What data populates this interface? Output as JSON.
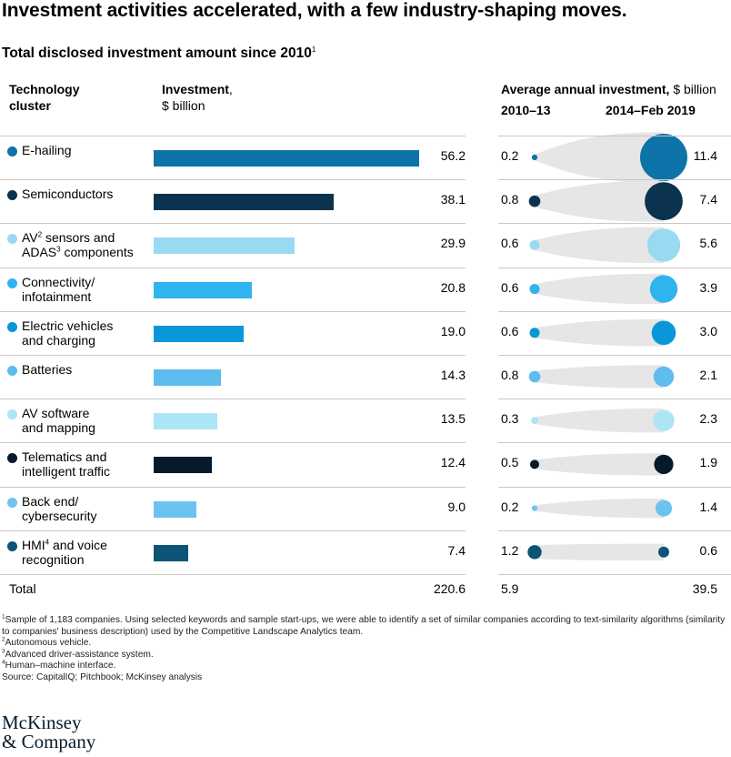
{
  "title": "Investment activities accelerated, with a few industry-shaping moves.",
  "subtitle": "Total disclosed investment amount since 2010",
  "subtitle_note": "1",
  "headers": {
    "cluster_line1": "Technology",
    "cluster_line2": "cluster",
    "investment_bold": "Investment",
    "investment_comma": ",",
    "investment_unit": "$ billion",
    "avg_bold": "Average annual investment,",
    "avg_unit": "$ billion",
    "period1": "2010–13",
    "period2": "2014–Feb 2019"
  },
  "chart_data": {
    "type": "bar",
    "categories": [
      "E-hailing",
      "Semiconductors",
      "AV sensors and ADAS components",
      "Connectivity/ infotainment",
      "Electric vehicles and charging",
      "Batteries",
      "AV software and mapping",
      "Telematics and intelligent traffic",
      "Back end/ cybersecurity",
      "HMI and voice recognition"
    ],
    "series": [
      {
        "name": "Investment, $ billion",
        "values": [
          56.2,
          38.1,
          29.9,
          20.8,
          19.0,
          14.3,
          13.5,
          12.4,
          9.0,
          7.4
        ]
      },
      {
        "name": "Average annual investment 2010–13, $ billion",
        "values": [
          0.2,
          0.8,
          0.6,
          0.6,
          0.6,
          0.8,
          0.3,
          0.5,
          0.2,
          1.2
        ]
      },
      {
        "name": "Average annual investment 2014–Feb 2019, $ billion",
        "values": [
          11.4,
          7.4,
          5.6,
          3.9,
          3.0,
          2.1,
          2.3,
          1.9,
          1.4,
          0.6
        ]
      }
    ],
    "rows": [
      {
        "line1": "E-hailing",
        "line2": "",
        "sup1": "",
        "sup2": "",
        "line1_post": "",
        "line2_post": "",
        "color": "#0e73a9",
        "investment": "56.2",
        "invest_num": 56.2,
        "avg1": "0.2",
        "avg1_num": 0.2,
        "avg2": "11.4",
        "avg2_num": 11.4
      },
      {
        "line1": "Semiconductors",
        "line2": "",
        "sup1": "",
        "sup2": "",
        "line1_post": "",
        "line2_post": "",
        "color": "#0b3350",
        "investment": "38.1",
        "invest_num": 38.1,
        "avg1": "0.8",
        "avg1_num": 0.8,
        "avg2": "7.4",
        "avg2_num": 7.4
      },
      {
        "line1": "AV",
        "sup1": "2",
        "line1_post": " sensors and",
        "line2": "ADAS",
        "sup2": "3",
        "line2_post": " components",
        "color": "#99d9f2",
        "investment": "29.9",
        "invest_num": 29.9,
        "avg1": "0.6",
        "avg1_num": 0.6,
        "avg2": "5.6",
        "avg2_num": 5.6
      },
      {
        "line1": "Connectivity/",
        "line2": "infotainment",
        "sup1": "",
        "sup2": "",
        "line1_post": "",
        "line2_post": "",
        "color": "#2fb4ee",
        "investment": "20.8",
        "invest_num": 20.8,
        "avg1": "0.6",
        "avg1_num": 0.6,
        "avg2": "3.9",
        "avg2_num": 3.9
      },
      {
        "line1": "Electric vehicles",
        "line2": "and charging",
        "sup1": "",
        "sup2": "",
        "line1_post": "",
        "line2_post": "",
        "color": "#0a97d8",
        "investment": "19.0",
        "invest_num": 19.0,
        "avg1": "0.6",
        "avg1_num": 0.6,
        "avg2": "3.0",
        "avg2_num": 3.0
      },
      {
        "line1": "Batteries",
        "line2": "",
        "sup1": "",
        "sup2": "",
        "line1_post": "",
        "line2_post": "",
        "color": "#5fbcee",
        "investment": "14.3",
        "invest_num": 14.3,
        "avg1": "0.8",
        "avg1_num": 0.8,
        "avg2": "2.1",
        "avg2_num": 2.1
      },
      {
        "line1": "AV software",
        "line2": "and mapping",
        "sup1": "",
        "sup2": "",
        "line1_post": "",
        "line2_post": "",
        "color": "#aee5f4",
        "investment": "13.5",
        "invest_num": 13.5,
        "avg1": "0.3",
        "avg1_num": 0.3,
        "avg2": "2.3",
        "avg2_num": 2.3
      },
      {
        "line1": "Telematics and",
        "line2": "intelligent traffic",
        "sup1": "",
        "sup2": "",
        "line1_post": "",
        "line2_post": "",
        "color": "#061a2b",
        "investment": "12.4",
        "invest_num": 12.4,
        "avg1": "0.5",
        "avg1_num": 0.5,
        "avg2": "1.9",
        "avg2_num": 1.9
      },
      {
        "line1": "Back end/",
        "line2": "cybersecurity",
        "sup1": "",
        "sup2": "",
        "line1_post": "",
        "line2_post": "",
        "color": "#6cc3f0",
        "investment": "9.0",
        "invest_num": 9.0,
        "avg1": "0.2",
        "avg1_num": 0.2,
        "avg2": "1.4",
        "avg2_num": 1.4
      },
      {
        "line1": "HMI",
        "sup1": "4",
        "line1_post": " and voice",
        "line2": "recognition",
        "sup2": "",
        "line2_post": "",
        "color": "#0b5478",
        "investment": "7.4",
        "invest_num": 7.4,
        "avg1": "1.2",
        "avg1_num": 1.2,
        "avg2": "0.6",
        "avg2_num": 0.6
      }
    ],
    "total_label": "Total",
    "total_investment": "220.6",
    "total_avg1": "5.9",
    "total_avg2": "39.5"
  },
  "footnotes": [
    {
      "sup": "1",
      "text": "Sample of 1,183 companies. Using selected keywords and sample start-ups, we were able to identify a set of similar companies according to text-similarity algorithms (similarity to companies' business description) used by the Competitive Landscape Analytics team."
    },
    {
      "sup": "2",
      "text": "Autonomous vehicle."
    },
    {
      "sup": "3",
      "text": "Advanced driver-assistance system."
    },
    {
      "sup": "4",
      "text": "Human–machine interface."
    },
    {
      "sup": "",
      "text": " Source: CapitalIQ; Pitchbook; McKinsey analysis"
    }
  ],
  "logo": {
    "line1": "McKinsey",
    "line2": "& Company"
  },
  "colors": {
    "ellipse_fill": "#e6e6e6",
    "grid_line": "#c8c8c8"
  }
}
